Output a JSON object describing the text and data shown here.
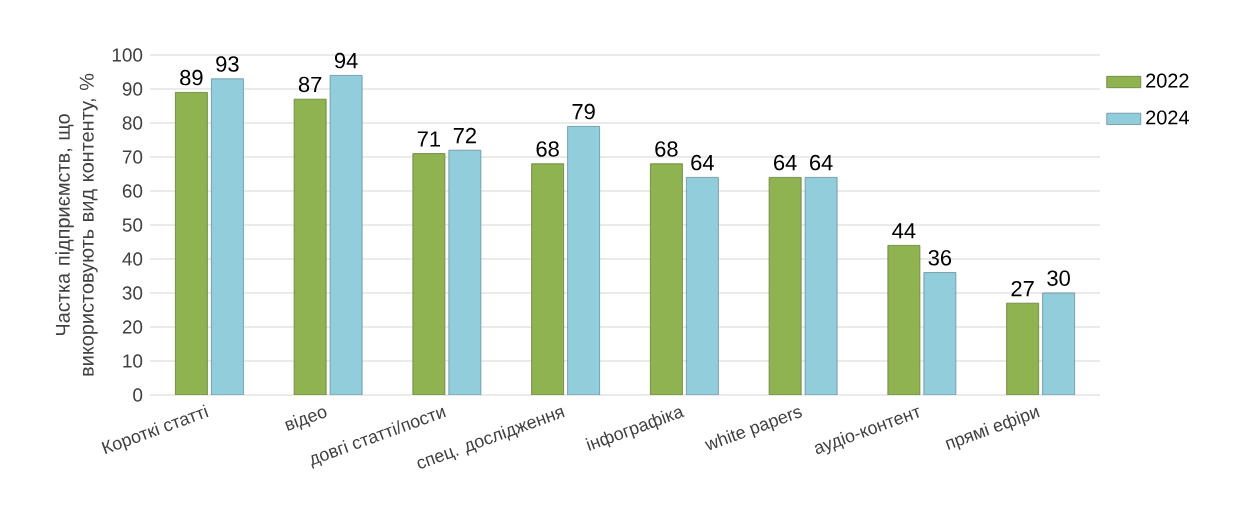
{
  "chart_data": {
    "type": "bar",
    "ylabel": "Частка підприємств, що використовують вид контенту, %",
    "categories": [
      "Короткі статті",
      "відео",
      "довгі статті/пости",
      "спец. дослідження",
      "інфографіка",
      "white papers",
      "аудіо-контент",
      "прямі ефіри"
    ],
    "series": [
      {
        "name": "2022",
        "color": "#8fb350",
        "values": [
          89,
          87,
          71,
          68,
          68,
          64,
          44,
          27
        ]
      },
      {
        "name": "2024",
        "color": "#92cddc",
        "values": [
          93,
          94,
          72,
          79,
          64,
          64,
          36,
          30
        ]
      }
    ],
    "ylim": [
      0,
      100
    ],
    "yticks": [
      0,
      10,
      20,
      30,
      40,
      50,
      60,
      70,
      80,
      90,
      100
    ],
    "grid": "y",
    "legend": "top right",
    "data_labels": true
  }
}
